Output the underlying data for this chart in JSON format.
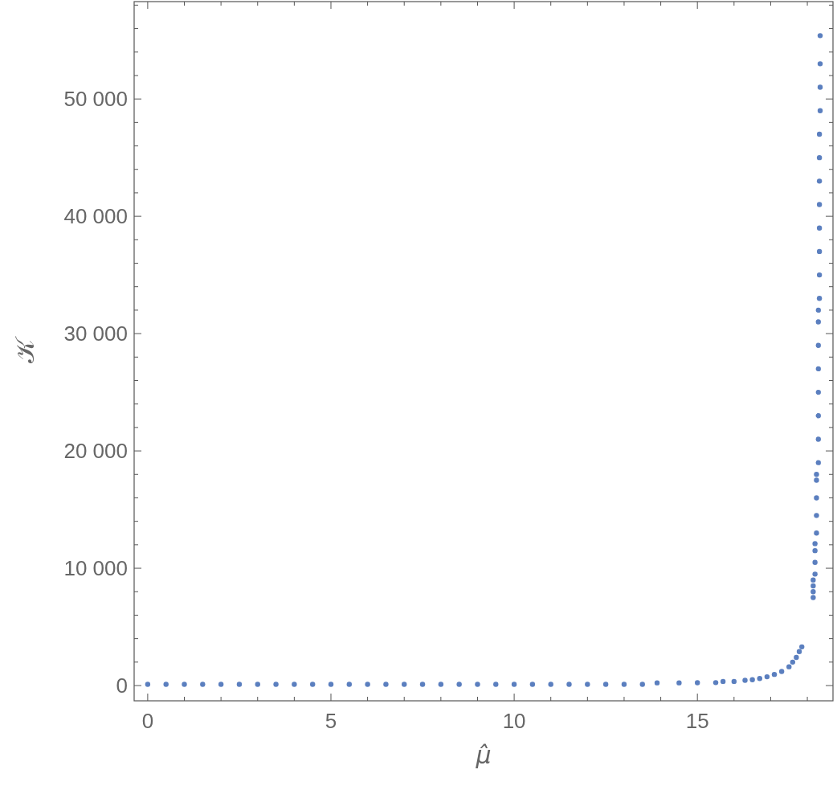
{
  "chart_data": {
    "type": "scatter",
    "xlabel": "μ̂",
    "ylabel": "𝒦",
    "marker": "circle",
    "grid": false,
    "xlim": [
      -0.37,
      18.7
    ],
    "ylim": [
      -1300,
      58300
    ],
    "xticks": [
      0,
      {
        "value": 1,
        "label": null
      },
      {
        "value": 2,
        "label": null
      },
      {
        "value": 3,
        "label": null
      },
      {
        "value": 4,
        "label": null
      },
      5,
      {
        "value": 6,
        "label": null
      },
      {
        "value": 7,
        "label": null
      },
      {
        "value": 8,
        "label": null
      },
      {
        "value": 9,
        "label": null
      },
      10,
      {
        "value": 11,
        "label": null
      },
      {
        "value": 12,
        "label": null
      },
      {
        "value": 13,
        "label": null
      },
      {
        "value": 14,
        "label": null
      },
      15,
      {
        "value": 16,
        "label": null
      },
      {
        "value": 17,
        "label": null
      },
      {
        "value": 18,
        "label": null
      }
    ],
    "yticks": [
      {
        "value": 0,
        "label": "0"
      },
      {
        "value": 2000,
        "label": null
      },
      {
        "value": 4000,
        "label": null
      },
      {
        "value": 6000,
        "label": null
      },
      {
        "value": 8000,
        "label": null
      },
      {
        "value": 10000,
        "label": "10 000"
      },
      {
        "value": 12000,
        "label": null
      },
      {
        "value": 14000,
        "label": null
      },
      {
        "value": 16000,
        "label": null
      },
      {
        "value": 18000,
        "label": null
      },
      {
        "value": 20000,
        "label": "20 000"
      },
      {
        "value": 22000,
        "label": null
      },
      {
        "value": 24000,
        "label": null
      },
      {
        "value": 26000,
        "label": null
      },
      {
        "value": 28000,
        "label": null
      },
      {
        "value": 30000,
        "label": "30 000"
      },
      {
        "value": 32000,
        "label": null
      },
      {
        "value": 34000,
        "label": null
      },
      {
        "value": 36000,
        "label": null
      },
      {
        "value": 38000,
        "label": null
      },
      {
        "value": 40000,
        "label": "40 000"
      },
      {
        "value": 42000,
        "label": null
      },
      {
        "value": 44000,
        "label": null
      },
      {
        "value": 46000,
        "label": null
      },
      {
        "value": 48000,
        "label": null
      },
      {
        "value": 50000,
        "label": "50 000"
      },
      {
        "value": 52000,
        "label": null
      },
      {
        "value": 54000,
        "label": null
      },
      {
        "value": 56000,
        "label": null
      },
      {
        "value": 58000,
        "label": null
      }
    ],
    "series": [
      {
        "color": "#5b7fbf",
        "x": [
          0,
          0.5,
          1,
          1.5,
          2,
          2.5,
          3,
          3.5,
          4,
          4.5,
          5,
          5.5,
          6,
          6.5,
          7,
          7.5,
          8,
          8.5,
          9,
          9.5,
          10,
          10.5,
          11,
          11.5,
          12,
          12.5,
          13,
          13.5,
          13.9,
          14.5,
          15,
          15.5,
          15.7,
          16,
          16.3,
          16.5,
          16.7,
          16.9,
          17.1,
          17.3,
          17.5,
          17.6,
          17.7,
          17.78,
          17.85,
          18.16,
          18.16,
          18.16,
          18.16,
          18.21,
          18.21,
          18.21,
          18.21,
          18.25,
          18.25,
          18.25,
          18.25,
          18.25,
          18.3,
          18.3,
          18.3,
          18.3,
          18.3,
          18.3,
          18.3,
          18.3,
          18.33,
          18.33,
          18.33,
          18.33,
          18.33,
          18.33,
          18.33,
          18.33,
          18.35,
          18.35,
          18.35,
          18.35
        ],
        "values": [
          100,
          100,
          100,
          100,
          100,
          100,
          100,
          100,
          100,
          100,
          100,
          100,
          100,
          100,
          100,
          100,
          100,
          100,
          100,
          100,
          100,
          100,
          100,
          100,
          100,
          100,
          100,
          100,
          230,
          230,
          240,
          250,
          350,
          350,
          450,
          500,
          600,
          750,
          950,
          1200,
          1600,
          2000,
          2400,
          2900,
          3300,
          7500,
          8000,
          8500,
          9000,
          9500,
          10500,
          11500,
          12100,
          13000,
          14500,
          16000,
          17500,
          18000,
          19000,
          21000,
          23000,
          25000,
          27000,
          29000,
          31000,
          32000,
          33000,
          35000,
          37000,
          39000,
          41000,
          43000,
          45000,
          47000,
          49000,
          51000,
          53000,
          55400
        ]
      }
    ]
  }
}
